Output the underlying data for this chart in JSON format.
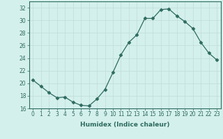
{
  "x": [
    0,
    1,
    2,
    3,
    4,
    5,
    6,
    7,
    8,
    9,
    10,
    11,
    12,
    13,
    14,
    15,
    16,
    17,
    18,
    19,
    20,
    21,
    22,
    23
  ],
  "y": [
    20.5,
    19.5,
    18.5,
    17.7,
    17.8,
    17.0,
    16.5,
    16.4,
    17.5,
    19.0,
    21.7,
    24.5,
    26.5,
    27.7,
    30.3,
    30.3,
    31.7,
    31.8,
    30.7,
    29.8,
    28.7,
    26.5,
    24.8,
    23.7
  ],
  "xlabel": "Humidex (Indice chaleur)",
  "ylim": [
    16,
    33
  ],
  "xlim": [
    -0.5,
    23.5
  ],
  "yticks": [
    16,
    18,
    20,
    22,
    24,
    26,
    28,
    30,
    32
  ],
  "xticks": [
    0,
    1,
    2,
    3,
    4,
    5,
    6,
    7,
    8,
    9,
    10,
    11,
    12,
    13,
    14,
    15,
    16,
    17,
    18,
    19,
    20,
    21,
    22,
    23
  ],
  "line_color": "#2e6b5e",
  "marker": "D",
  "marker_size": 2.5,
  "bg_color": "#d4f0ed",
  "grid_color": "#c0ddd9",
  "fig_bg": "#d4f0ed",
  "tick_fontsize": 5.5,
  "xlabel_fontsize": 6.5
}
